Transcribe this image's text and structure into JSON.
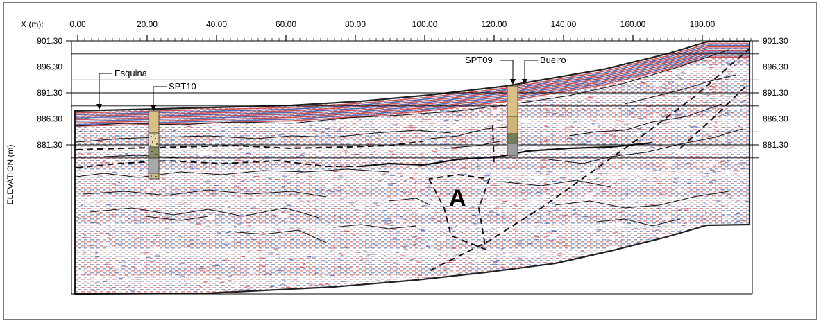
{
  "figure": {
    "x_axis": {
      "label": "X (m):",
      "ticks": [
        {
          "value": 0,
          "label": "0.00"
        },
        {
          "value": 20,
          "label": "20.00"
        },
        {
          "value": 40,
          "label": "40.00"
        },
        {
          "value": 60,
          "label": "60.00"
        },
        {
          "value": 80,
          "label": "80.00"
        },
        {
          "value": 100,
          "label": "100.00"
        },
        {
          "value": 120,
          "label": "120.00"
        },
        {
          "value": 140,
          "label": "140.00"
        },
        {
          "value": 160,
          "label": "160.00"
        },
        {
          "value": 180,
          "label": "180.00"
        }
      ]
    },
    "y_axis": {
      "label": "ELEVATION (m)",
      "ticks": [
        {
          "value": 901.3,
          "label": "901.30"
        },
        {
          "value": 896.3,
          "label": "896.30"
        },
        {
          "value": 891.3,
          "label": "891.30"
        },
        {
          "value": 886.3,
          "label": "886.30"
        },
        {
          "value": 881.3,
          "label": "881.30"
        }
      ]
    },
    "annotations": {
      "esquina": "Esquina",
      "spt10": "SPT10",
      "spt09": "SPT09",
      "bueiro": "Bueiro",
      "zone_a": "A"
    },
    "colors": {
      "blue": "#3b5aa8",
      "red": "#c8383c",
      "background": "#ffffff",
      "borehole_sand": "#d8bf84",
      "borehole_gray": "#9a9a9a"
    }
  }
}
